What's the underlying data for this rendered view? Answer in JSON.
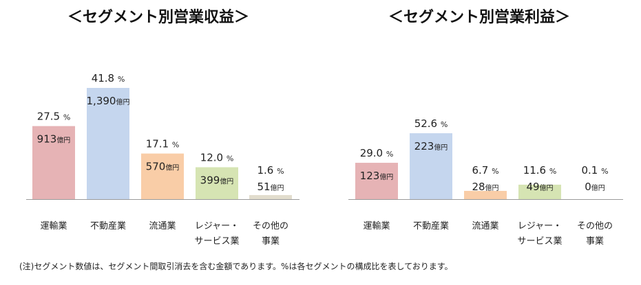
{
  "chart_data": [
    {
      "type": "bar",
      "title": "＜セグメント別営業収益＞",
      "categories": [
        [
          "運輸業"
        ],
        [
          "不動産業"
        ],
        [
          "流通業"
        ],
        [
          "レジャー・",
          "サービス業"
        ],
        [
          "その他の",
          "事業"
        ]
      ],
      "values": [
        913,
        1390,
        570,
        399,
        51
      ],
      "value_unit": "億円",
      "percents": [
        "27.5",
        "41.8",
        "17.1",
        "12.0",
        "1.6"
      ],
      "percent_unit": "%",
      "colors": [
        "#e6b3b5",
        "#c5d6ee",
        "#f9cda7",
        "#d6e4b3",
        "#e2ddcd"
      ]
    },
    {
      "type": "bar",
      "title": "＜セグメント別営業利益＞",
      "categories": [
        [
          "運輸業"
        ],
        [
          "不動産業"
        ],
        [
          "流通業"
        ],
        [
          "レジャー・",
          "サービス業"
        ],
        [
          "その他の",
          "事業"
        ]
      ],
      "values": [
        123,
        223,
        28,
        49,
        0
      ],
      "value_unit": "億円",
      "percents": [
        "29.0",
        "52.6",
        "6.7",
        "11.6",
        "0.1"
      ],
      "percent_unit": "%",
      "colors": [
        "#e6b3b5",
        "#c5d6ee",
        "#f9cda7",
        "#d6e4b3",
        "#e2ddcd"
      ]
    }
  ],
  "footnote": "(注)セグメント数値は、セグメント間取引消去を含む金額であります。%は各セグメントの構成比を表しております。"
}
